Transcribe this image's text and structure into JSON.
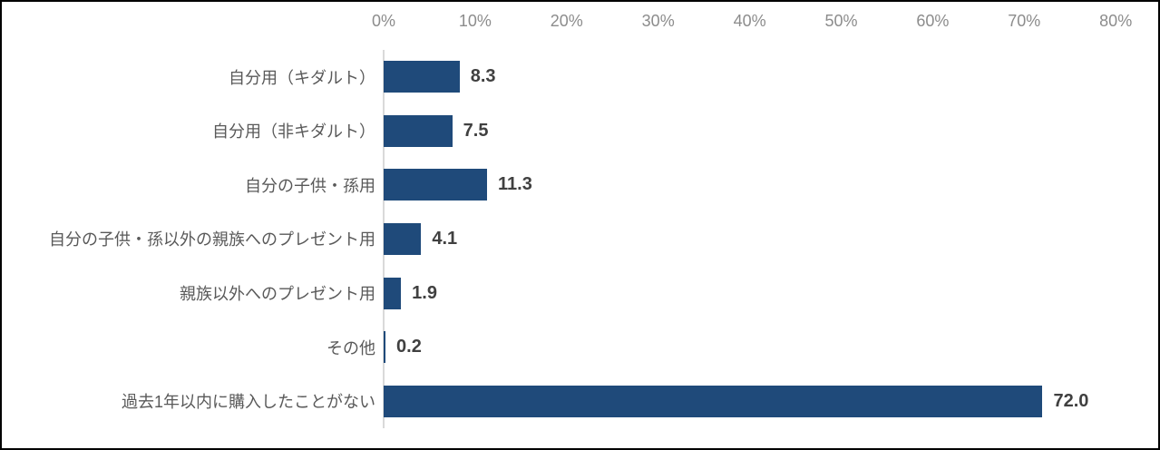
{
  "chart_data": {
    "type": "bar",
    "orientation": "horizontal",
    "title": "",
    "xlabel": "",
    "ylabel": "",
    "categories": [
      "自分用（キダルト）",
      "自分用（非キダルト）",
      "自分の子供・孫用",
      "自分の子供・孫以外の親族へのプレゼント用",
      "親族以外へのプレゼント用",
      "その他",
      "過去1年以内に購入したことがない"
    ],
    "values": [
      8.3,
      7.5,
      11.3,
      4.1,
      1.9,
      0.2,
      72.0
    ],
    "value_labels": [
      "8.3",
      "7.5",
      "11.3",
      "4.1",
      "1.9",
      "0.2",
      "72.0"
    ],
    "axis": {
      "position": "top",
      "min": 0,
      "max": 80,
      "step": 10,
      "tick_labels": [
        "0%",
        "10%",
        "20%",
        "30%",
        "40%",
        "50%",
        "60%",
        "70%",
        "80%"
      ]
    },
    "xlim": [
      0,
      80
    ],
    "grid": false,
    "legend": false,
    "data_labels": true,
    "colors": {
      "bar": "#1f4a7a",
      "value_label": "#404040",
      "category_label": "#595959",
      "tick_label": "#8c8c8c",
      "axis_line": "#d9d9d9",
      "border": "#000000",
      "background": "#ffffff"
    }
  }
}
